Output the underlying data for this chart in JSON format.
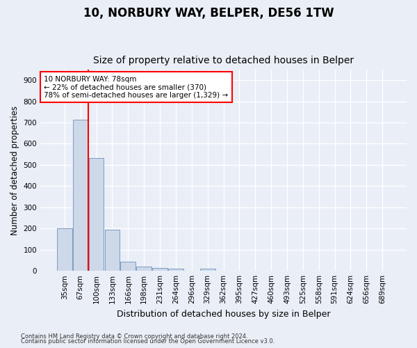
{
  "title": "10, NORBURY WAY, BELPER, DE56 1TW",
  "subtitle": "Size of property relative to detached houses in Belper",
  "xlabel": "Distribution of detached houses by size in Belper",
  "ylabel": "Number of detached properties",
  "categories": [
    "35sqm",
    "67sqm",
    "100sqm",
    "133sqm",
    "166sqm",
    "198sqm",
    "231sqm",
    "264sqm",
    "296sqm",
    "329sqm",
    "362sqm",
    "395sqm",
    "427sqm",
    "460sqm",
    "493sqm",
    "525sqm",
    "558sqm",
    "591sqm",
    "624sqm",
    "656sqm",
    "689sqm"
  ],
  "values": [
    200,
    713,
    533,
    193,
    42,
    19,
    15,
    12,
    0,
    10,
    0,
    0,
    0,
    0,
    0,
    0,
    0,
    0,
    0,
    0,
    0
  ],
  "bar_color": "#cdd8e8",
  "bar_edge_color": "#7a9cc4",
  "red_line_x": 1.5,
  "annotation_text": "10 NORBURY WAY: 78sqm\n← 22% of detached houses are smaller (370)\n78% of semi-detached houses are larger (1,329) →",
  "annotation_box_color": "white",
  "annotation_box_edge_color": "red",
  "red_line_color": "red",
  "ylim": [
    0,
    950
  ],
  "yticks": [
    0,
    100,
    200,
    300,
    400,
    500,
    600,
    700,
    800,
    900
  ],
  "background_color": "#eaeff7",
  "plot_bg_color": "#eaeff7",
  "footer_line1": "Contains HM Land Registry data © Crown copyright and database right 2024.",
  "footer_line2": "Contains public sector information licensed under the Open Government Licence v3.0.",
  "title_fontsize": 12,
  "subtitle_fontsize": 10,
  "xlabel_fontsize": 9,
  "ylabel_fontsize": 8.5,
  "tick_fontsize": 7.5,
  "annotation_fontsize": 7.5,
  "footer_fontsize": 6
}
